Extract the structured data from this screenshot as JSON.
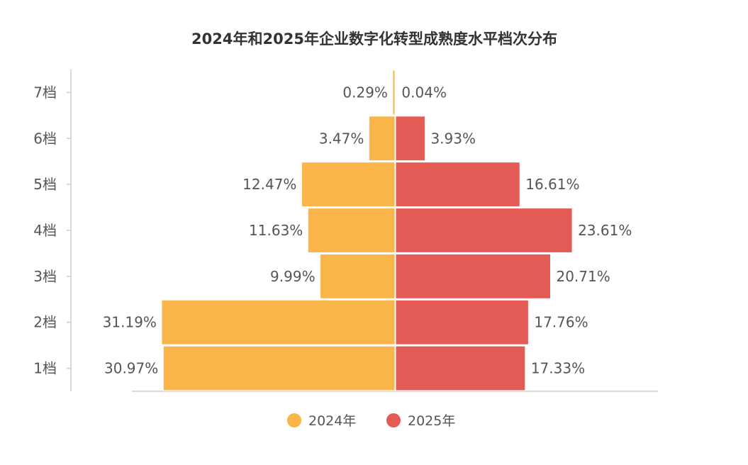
{
  "chart_data": {
    "type": "bar",
    "orientation": "horizontal-diverging",
    "title": "2024年和2025年企业数字化转型成熟度水平档次分布",
    "categories": [
      "1档",
      "2档",
      "3档",
      "4档",
      "5档",
      "6档",
      "7档"
    ],
    "series": [
      {
        "name": "2024年",
        "color": "#F9B44A",
        "values": [
          30.97,
          31.19,
          9.99,
          11.63,
          12.47,
          3.47,
          0.29
        ],
        "labels": [
          "30.97%",
          "31.19%",
          "9.99%",
          "11.63%",
          "12.47%",
          "3.47%",
          "0.29%"
        ]
      },
      {
        "name": "2025年",
        "color": "#E45A55",
        "values": [
          17.33,
          17.76,
          20.71,
          23.61,
          16.61,
          3.93,
          0.04
        ],
        "labels": [
          "17.33%",
          "17.76%",
          "20.71%",
          "23.61%",
          "16.61%",
          "3.93%",
          "0.04%"
        ]
      }
    ],
    "xlabel": "",
    "ylabel": "",
    "xlim": [
      -35,
      35
    ],
    "grid": false,
    "legend_position": "bottom"
  }
}
